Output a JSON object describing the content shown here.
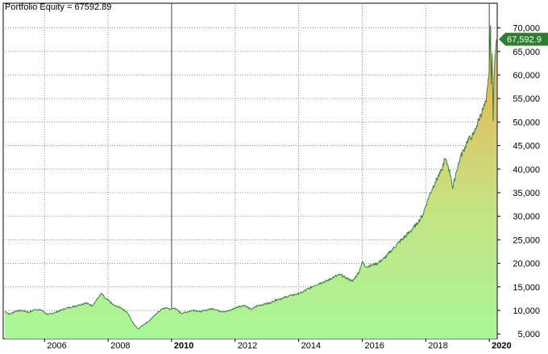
{
  "title": "Portfolio Equity = 67592.89",
  "last_value_label": "67,592.9",
  "colors": {
    "background": "#ffffff",
    "grid": "#888888",
    "line": "#3f7f3f",
    "fill_low": "#a8f898",
    "fill_high": "#f0a848",
    "marker": "#2f7d2f"
  },
  "chart_data": {
    "type": "area",
    "title": "Portfolio Equity = 67592.89",
    "xlabel": "",
    "ylabel": "",
    "xlim": [
      2004.7,
      2020.25
    ],
    "ylim": [
      4000,
      72500
    ],
    "grid": true,
    "x_ticks": [
      {
        "value": 2006,
        "label": "2006",
        "bold": false
      },
      {
        "value": 2008,
        "label": "2008",
        "bold": false
      },
      {
        "value": 2010,
        "label": "2010",
        "bold": true
      },
      {
        "value": 2012,
        "label": "2012",
        "bold": false
      },
      {
        "value": 2014,
        "label": "2014",
        "bold": false
      },
      {
        "value": 2016,
        "label": "2016",
        "bold": false
      },
      {
        "value": 2018,
        "label": "2018",
        "bold": false
      },
      {
        "value": 2020,
        "label": "2020",
        "bold": true
      }
    ],
    "y_ticks": [
      {
        "value": 5000,
        "label": "5,000"
      },
      {
        "value": 10000,
        "label": "10,000"
      },
      {
        "value": 15000,
        "label": "15,000"
      },
      {
        "value": 20000,
        "label": "20,000"
      },
      {
        "value": 25000,
        "label": "25,000"
      },
      {
        "value": 30000,
        "label": "30,000"
      },
      {
        "value": 35000,
        "label": "35,000"
      },
      {
        "value": 40000,
        "label": "40,000"
      },
      {
        "value": 45000,
        "label": "45,000"
      },
      {
        "value": 50000,
        "label": "50,000"
      },
      {
        "value": 55000,
        "label": "55,000"
      },
      {
        "value": 60000,
        "label": "60,000"
      },
      {
        "value": 65000,
        "label": "65,000"
      },
      {
        "value": 70000,
        "label": "70,000"
      }
    ],
    "series": [
      {
        "values": [
          [
            2004.75,
            9800
          ],
          [
            2004.9,
            9200
          ],
          [
            2005.1,
            9900
          ],
          [
            2005.3,
            10000
          ],
          [
            2005.5,
            9600
          ],
          [
            2005.7,
            10200
          ],
          [
            2005.9,
            10100
          ],
          [
            2006.1,
            9100
          ],
          [
            2006.3,
            9500
          ],
          [
            2006.5,
            10000
          ],
          [
            2006.7,
            10500
          ],
          [
            2006.9,
            10800
          ],
          [
            2007.1,
            11200
          ],
          [
            2007.3,
            11600
          ],
          [
            2007.5,
            11000
          ],
          [
            2007.7,
            12800
          ],
          [
            2007.8,
            13600
          ],
          [
            2007.9,
            12600
          ],
          [
            2008.0,
            12200
          ],
          [
            2008.2,
            11000
          ],
          [
            2008.4,
            10600
          ],
          [
            2008.6,
            9600
          ],
          [
            2008.8,
            7200
          ],
          [
            2008.95,
            6100
          ],
          [
            2009.1,
            6900
          ],
          [
            2009.3,
            7800
          ],
          [
            2009.5,
            9200
          ],
          [
            2009.7,
            10300
          ],
          [
            2009.85,
            10600
          ],
          [
            2009.95,
            10200
          ],
          [
            2010.1,
            10500
          ],
          [
            2010.3,
            9400
          ],
          [
            2010.5,
            9700
          ],
          [
            2010.7,
            10100
          ],
          [
            2010.9,
            9700
          ],
          [
            2011.1,
            10100
          ],
          [
            2011.3,
            10400
          ],
          [
            2011.5,
            9900
          ],
          [
            2011.7,
            9700
          ],
          [
            2011.9,
            10200
          ],
          [
            2012.1,
            10800
          ],
          [
            2012.3,
            11100
          ],
          [
            2012.5,
            10200
          ],
          [
            2012.7,
            11000
          ],
          [
            2012.9,
            11300
          ],
          [
            2013.1,
            11600
          ],
          [
            2013.3,
            12300
          ],
          [
            2013.5,
            12600
          ],
          [
            2013.7,
            13100
          ],
          [
            2013.9,
            13400
          ],
          [
            2014.1,
            13800
          ],
          [
            2014.3,
            14600
          ],
          [
            2014.5,
            15300
          ],
          [
            2014.7,
            15900
          ],
          [
            2014.9,
            16300
          ],
          [
            2015.1,
            17100
          ],
          [
            2015.3,
            17600
          ],
          [
            2015.5,
            16900
          ],
          [
            2015.7,
            16200
          ],
          [
            2015.9,
            18200
          ],
          [
            2016.0,
            20300
          ],
          [
            2016.1,
            19300
          ],
          [
            2016.3,
            19600
          ],
          [
            2016.5,
            20100
          ],
          [
            2016.7,
            21100
          ],
          [
            2016.9,
            22600
          ],
          [
            2017.1,
            24100
          ],
          [
            2017.3,
            25400
          ],
          [
            2017.5,
            26700
          ],
          [
            2017.7,
            28200
          ],
          [
            2017.9,
            30200
          ],
          [
            2018.0,
            32200
          ],
          [
            2018.1,
            34200
          ],
          [
            2018.3,
            37300
          ],
          [
            2018.5,
            39700
          ],
          [
            2018.6,
            42200
          ],
          [
            2018.7,
            40800
          ],
          [
            2018.8,
            38200
          ],
          [
            2018.85,
            35800
          ],
          [
            2018.95,
            39200
          ],
          [
            2019.1,
            42700
          ],
          [
            2019.2,
            44100
          ],
          [
            2019.3,
            45900
          ],
          [
            2019.4,
            46700
          ],
          [
            2019.5,
            47200
          ],
          [
            2019.6,
            49200
          ],
          [
            2019.7,
            51100
          ],
          [
            2019.8,
            52700
          ],
          [
            2019.9,
            54200
          ],
          [
            2019.95,
            57600
          ],
          [
            2020.0,
            61200
          ],
          [
            2020.02,
            66200
          ],
          [
            2020.04,
            70600
          ],
          [
            2020.06,
            58000
          ],
          [
            2020.09,
            64600
          ],
          [
            2020.12,
            50200
          ],
          [
            2020.15,
            60200
          ],
          [
            2020.18,
            64100
          ],
          [
            2020.21,
            66400
          ],
          [
            2020.23,
            67592.89
          ]
        ]
      }
    ]
  }
}
